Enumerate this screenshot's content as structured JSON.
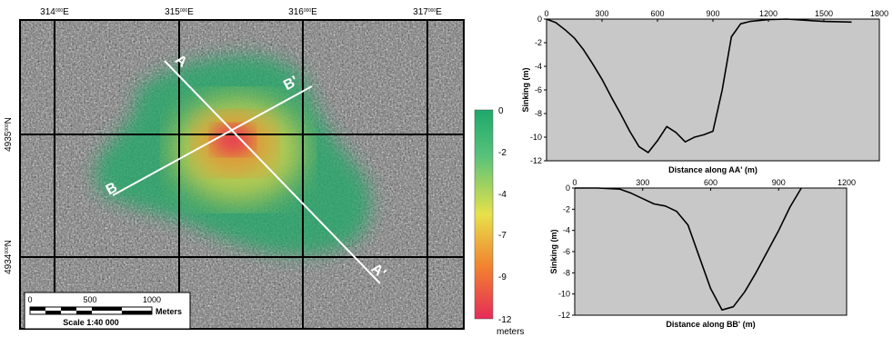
{
  "map": {
    "easting_labels": [
      {
        "main": "314",
        "sup": "000",
        "suffix": "E"
      },
      {
        "main": "315",
        "sup": "000",
        "suffix": "E"
      },
      {
        "main": "316",
        "sup": "000",
        "suffix": "E"
      },
      {
        "main": "317",
        "sup": "000",
        "suffix": "E"
      }
    ],
    "northing_labels": [
      {
        "main": "4935",
        "sup": "000",
        "suffix": "N"
      },
      {
        "main": "4934",
        "sup": "000",
        "suffix": "N"
      }
    ],
    "profile_labels": {
      "a_start": "A",
      "a_end": "A'",
      "b_start": "B",
      "b_end": "B'"
    },
    "scalebar": {
      "ticks": [
        "0",
        "500",
        "1000"
      ],
      "unit": "Meters",
      "scale_text": "Scale 1:40 000"
    },
    "colorbar": {
      "ticks": [
        "0",
        "-2",
        "-4",
        "-7",
        "-9",
        "-12"
      ],
      "unit": "meters",
      "colors": {
        "top": "#1ea86a",
        "upper": "#57c27a",
        "mid": "#e7e14a",
        "lower": "#f2822f",
        "bottom": "#e62b59"
      }
    }
  },
  "chart_data": [
    {
      "type": "line",
      "xlabel": "Distance along AA' (m)",
      "ylabel": "Sinking (m)",
      "xlim": [
        0,
        1800
      ],
      "ylim": [
        -12,
        0
      ],
      "xticks": [
        "0",
        "300",
        "600",
        "900",
        "1200",
        "1500",
        "1800"
      ],
      "yticks": [
        "0",
        "-2",
        "-4",
        "-6",
        "-8",
        "-10",
        "-12"
      ],
      "x": [
        0,
        50,
        100,
        150,
        200,
        250,
        300,
        350,
        400,
        450,
        500,
        550,
        600,
        650,
        700,
        750,
        800,
        850,
        900,
        950,
        1000,
        1050,
        1100,
        1200,
        1300,
        1400,
        1500,
        1650
      ],
      "y": [
        0,
        -0.3,
        -0.9,
        -1.6,
        -2.6,
        -3.8,
        -5.1,
        -6.6,
        -8.0,
        -9.5,
        -10.8,
        -11.3,
        -10.3,
        -9.1,
        -9.6,
        -10.4,
        -10.0,
        -9.8,
        -9.5,
        -6.0,
        -1.5,
        -0.4,
        -0.2,
        -0.05,
        0,
        -0.1,
        -0.2,
        -0.25
      ],
      "background": "#c8c8c8"
    },
    {
      "type": "line",
      "xlabel": "Distance along BB' (m)",
      "ylabel": "Sinking (m)",
      "xlim": [
        0,
        1200
      ],
      "ylim": [
        -12,
        0
      ],
      "xticks": [
        "0",
        "300",
        "600",
        "900",
        "1200"
      ],
      "yticks": [
        "0",
        "-2",
        "-4",
        "-6",
        "-8",
        "-10",
        "-12"
      ],
      "x": [
        0,
        100,
        200,
        250,
        300,
        350,
        400,
        450,
        500,
        550,
        600,
        650,
        700,
        750,
        800,
        850,
        900,
        950,
        1000
      ],
      "y": [
        0,
        0,
        -0.1,
        -0.5,
        -1.0,
        -1.5,
        -1.7,
        -2.2,
        -3.5,
        -6.5,
        -9.5,
        -11.5,
        -11.2,
        -9.8,
        -8.0,
        -6.0,
        -4.0,
        -1.8,
        0.1
      ],
      "background": "#c8c8c8"
    }
  ]
}
